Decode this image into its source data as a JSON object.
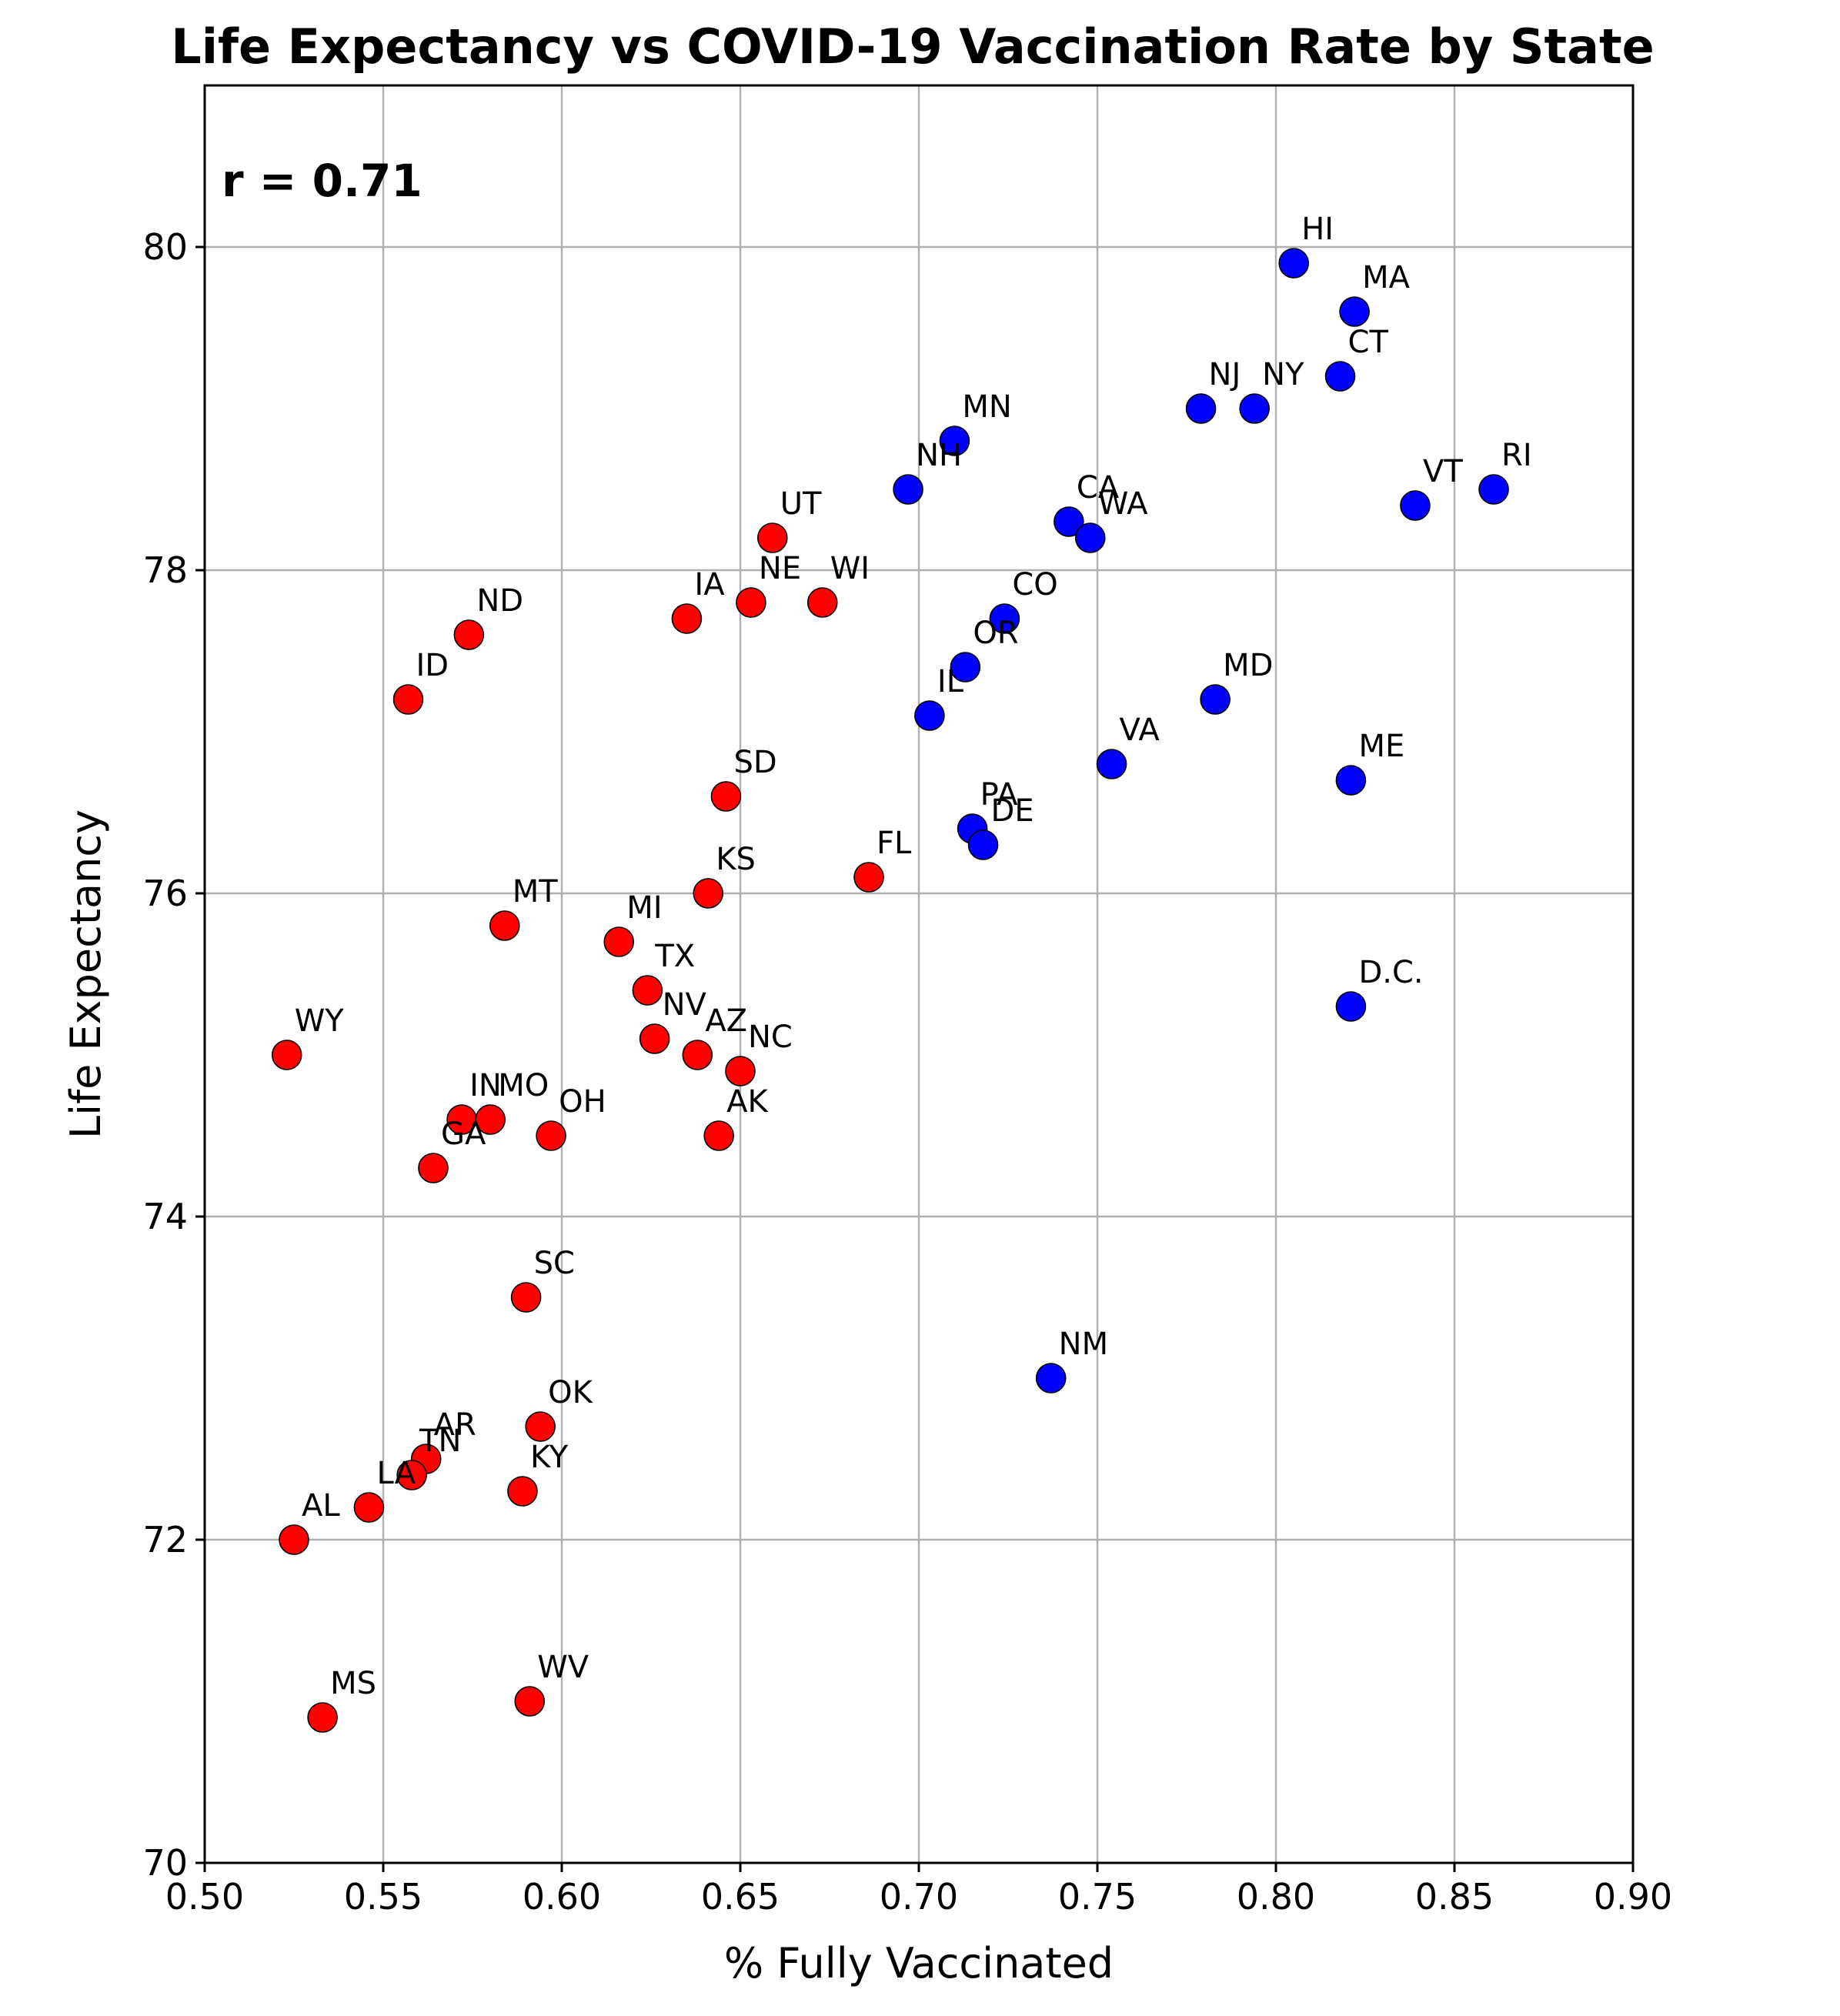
{
  "chart_data": {
    "type": "scatter",
    "title": "Life Expectancy vs COVID-19 Vaccination Rate by State",
    "xlabel": "% Fully Vaccinated",
    "ylabel": "Life Expectancy",
    "xlim": [
      0.5,
      0.9
    ],
    "ylim": [
      70,
      81
    ],
    "xticks": [
      "0.50",
      "0.55",
      "0.60",
      "0.65",
      "0.70",
      "0.75",
      "0.80",
      "0.85",
      "0.90"
    ],
    "yticks": [
      "70",
      "72",
      "74",
      "76",
      "78",
      "80"
    ],
    "grid": true,
    "annotation": "r = 0.71",
    "colors": {
      "red": "#ff0000",
      "blue": "#0000ff"
    },
    "points": [
      {
        "label": "HI",
        "x": 0.805,
        "y": 79.9,
        "color": "blue"
      },
      {
        "label": "MA",
        "x": 0.822,
        "y": 79.6,
        "color": "blue"
      },
      {
        "label": "CT",
        "x": 0.818,
        "y": 79.2,
        "color": "blue"
      },
      {
        "label": "NJ",
        "x": 0.779,
        "y": 79.0,
        "color": "blue"
      },
      {
        "label": "NY",
        "x": 0.794,
        "y": 79.0,
        "color": "blue"
      },
      {
        "label": "RI",
        "x": 0.861,
        "y": 78.5,
        "color": "blue"
      },
      {
        "label": "VT",
        "x": 0.839,
        "y": 78.4,
        "color": "blue"
      },
      {
        "label": "MN",
        "x": 0.71,
        "y": 78.8,
        "color": "blue"
      },
      {
        "label": "NH",
        "x": 0.697,
        "y": 78.5,
        "color": "blue"
      },
      {
        "label": "CA",
        "x": 0.742,
        "y": 78.3,
        "color": "blue"
      },
      {
        "label": "WA",
        "x": 0.748,
        "y": 78.2,
        "color": "blue"
      },
      {
        "label": "CO",
        "x": 0.724,
        "y": 77.7,
        "color": "blue"
      },
      {
        "label": "OR",
        "x": 0.713,
        "y": 77.4,
        "color": "blue"
      },
      {
        "label": "IL",
        "x": 0.703,
        "y": 77.1,
        "color": "blue"
      },
      {
        "label": "MD",
        "x": 0.783,
        "y": 77.2,
        "color": "blue"
      },
      {
        "label": "VA",
        "x": 0.754,
        "y": 76.8,
        "color": "blue"
      },
      {
        "label": "ME",
        "x": 0.821,
        "y": 76.7,
        "color": "blue"
      },
      {
        "label": "PA",
        "x": 0.715,
        "y": 76.4,
        "color": "blue"
      },
      {
        "label": "DE",
        "x": 0.718,
        "y": 76.3,
        "color": "blue"
      },
      {
        "label": "D.C.",
        "x": 0.821,
        "y": 75.3,
        "color": "blue"
      },
      {
        "label": "NM",
        "x": 0.737,
        "y": 73.0,
        "color": "blue"
      },
      {
        "label": "UT",
        "x": 0.659,
        "y": 78.2,
        "color": "red"
      },
      {
        "label": "IA",
        "x": 0.635,
        "y": 77.7,
        "color": "red"
      },
      {
        "label": "NE",
        "x": 0.653,
        "y": 77.8,
        "color": "red"
      },
      {
        "label": "WI",
        "x": 0.673,
        "y": 77.8,
        "color": "red"
      },
      {
        "label": "ND",
        "x": 0.574,
        "y": 77.6,
        "color": "red"
      },
      {
        "label": "ID",
        "x": 0.557,
        "y": 77.2,
        "color": "red"
      },
      {
        "label": "SD",
        "x": 0.646,
        "y": 76.6,
        "color": "red"
      },
      {
        "label": "FL",
        "x": 0.686,
        "y": 76.1,
        "color": "red"
      },
      {
        "label": "KS",
        "x": 0.641,
        "y": 76.0,
        "color": "red"
      },
      {
        "label": "MT",
        "x": 0.584,
        "y": 75.8,
        "color": "red"
      },
      {
        "label": "MI",
        "x": 0.616,
        "y": 75.7,
        "color": "red"
      },
      {
        "label": "TX",
        "x": 0.624,
        "y": 75.4,
        "color": "red"
      },
      {
        "label": "NV",
        "x": 0.626,
        "y": 75.1,
        "color": "red"
      },
      {
        "label": "AZ",
        "x": 0.638,
        "y": 75.0,
        "color": "red"
      },
      {
        "label": "NC",
        "x": 0.65,
        "y": 74.9,
        "color": "red"
      },
      {
        "label": "WY",
        "x": 0.523,
        "y": 75.0,
        "color": "red"
      },
      {
        "label": "IN",
        "x": 0.572,
        "y": 74.6,
        "color": "red"
      },
      {
        "label": "MO",
        "x": 0.58,
        "y": 74.6,
        "color": "red"
      },
      {
        "label": "OH",
        "x": 0.597,
        "y": 74.5,
        "color": "red"
      },
      {
        "label": "AK",
        "x": 0.644,
        "y": 74.5,
        "color": "red"
      },
      {
        "label": "GA",
        "x": 0.564,
        "y": 74.3,
        "color": "red"
      },
      {
        "label": "SC",
        "x": 0.59,
        "y": 73.5,
        "color": "red"
      },
      {
        "label": "OK",
        "x": 0.594,
        "y": 72.7,
        "color": "red"
      },
      {
        "label": "AR",
        "x": 0.562,
        "y": 72.5,
        "color": "red"
      },
      {
        "label": "TN",
        "x": 0.558,
        "y": 72.4,
        "color": "red"
      },
      {
        "label": "KY",
        "x": 0.589,
        "y": 72.3,
        "color": "red"
      },
      {
        "label": "LA",
        "x": 0.546,
        "y": 72.2,
        "color": "red"
      },
      {
        "label": "AL",
        "x": 0.525,
        "y": 72.0,
        "color": "red"
      },
      {
        "label": "MS",
        "x": 0.533,
        "y": 70.9,
        "color": "red"
      },
      {
        "label": "WV",
        "x": 0.591,
        "y": 71.0,
        "color": "red"
      }
    ]
  }
}
